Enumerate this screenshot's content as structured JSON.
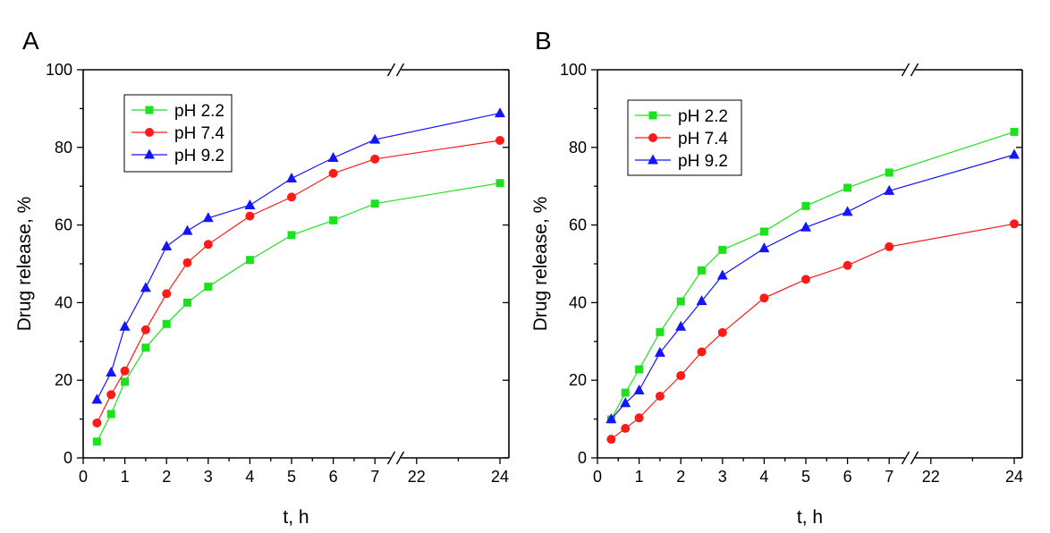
{
  "colors": {
    "pH 2.2": "#1ee11e",
    "pH 7.4": "#ff1a1a",
    "pH 9.2": "#1414ff"
  },
  "chart_data": [
    {
      "type": "line",
      "panel_label": "A",
      "xlabel": "t, h",
      "ylabel": "Drug release, %",
      "ylim": [
        0,
        100
      ],
      "yticks": [
        0,
        20,
        40,
        60,
        80,
        100
      ],
      "xticks": [
        0,
        1,
        2,
        3,
        4,
        5,
        6,
        7,
        22,
        24
      ],
      "x_axis_break": [
        7,
        22
      ],
      "legend_position": "top-left",
      "series": [
        {
          "name": "pH 2.2",
          "marker": "square",
          "x": [
            0.33,
            0.67,
            1,
            1.5,
            2,
            2.5,
            3,
            4,
            5,
            6,
            7,
            24
          ],
          "y": [
            4.2,
            11.3,
            19.6,
            28.4,
            34.5,
            40,
            44.1,
            51,
            57.4,
            61.2,
            65.5,
            70.8
          ]
        },
        {
          "name": "pH 7.4",
          "marker": "circle",
          "x": [
            0.33,
            0.67,
            1,
            1.5,
            2,
            2.5,
            3,
            4,
            5,
            6,
            7,
            24
          ],
          "y": [
            9,
            16.3,
            22.4,
            33,
            42.3,
            50.3,
            55,
            62.3,
            67.2,
            73.3,
            77,
            81.8
          ]
        },
        {
          "name": "pH 9.2",
          "marker": "triangle",
          "x": [
            0.33,
            0.67,
            1,
            1.5,
            2,
            2.5,
            3,
            4,
            5,
            6,
            7,
            24
          ],
          "y": [
            15,
            22,
            33.8,
            43.8,
            54.5,
            58.5,
            61.8,
            65.1,
            72,
            77.3,
            82,
            88.8
          ]
        }
      ]
    },
    {
      "type": "line",
      "panel_label": "B",
      "xlabel": "t, h",
      "ylabel": "Drug release, %",
      "ylim": [
        0,
        100
      ],
      "yticks": [
        0,
        20,
        40,
        60,
        80,
        100
      ],
      "xticks": [
        0,
        1,
        2,
        3,
        4,
        5,
        6,
        7,
        22,
        24
      ],
      "x_axis_break": [
        7,
        22
      ],
      "legend_position": "top-left",
      "series": [
        {
          "name": "pH 2.2",
          "marker": "square",
          "x": [
            0.33,
            0.67,
            1,
            1.5,
            2,
            2.5,
            3,
            4,
            5,
            6,
            7,
            24
          ],
          "y": [
            9.9,
            16.8,
            22.8,
            32.4,
            40.3,
            48.3,
            53.6,
            58.3,
            64.9,
            69.6,
            73.5,
            84
          ]
        },
        {
          "name": "pH 7.4",
          "marker": "circle",
          "x": [
            0.33,
            0.67,
            1,
            1.5,
            2,
            2.5,
            3,
            4,
            5,
            6,
            7,
            24
          ],
          "y": [
            4.8,
            7.6,
            10.3,
            15.9,
            21.2,
            27.3,
            32.3,
            41.2,
            46,
            49.6,
            54.4,
            60.3
          ]
        },
        {
          "name": "pH 9.2",
          "marker": "triangle",
          "x": [
            0.33,
            0.67,
            1,
            1.5,
            2,
            2.5,
            3,
            4,
            5,
            6,
            7,
            24
          ],
          "y": [
            10,
            14.1,
            17.4,
            27.1,
            33.8,
            40.4,
            47,
            54,
            59.4,
            63.4,
            68.8,
            78.1
          ]
        }
      ]
    }
  ]
}
